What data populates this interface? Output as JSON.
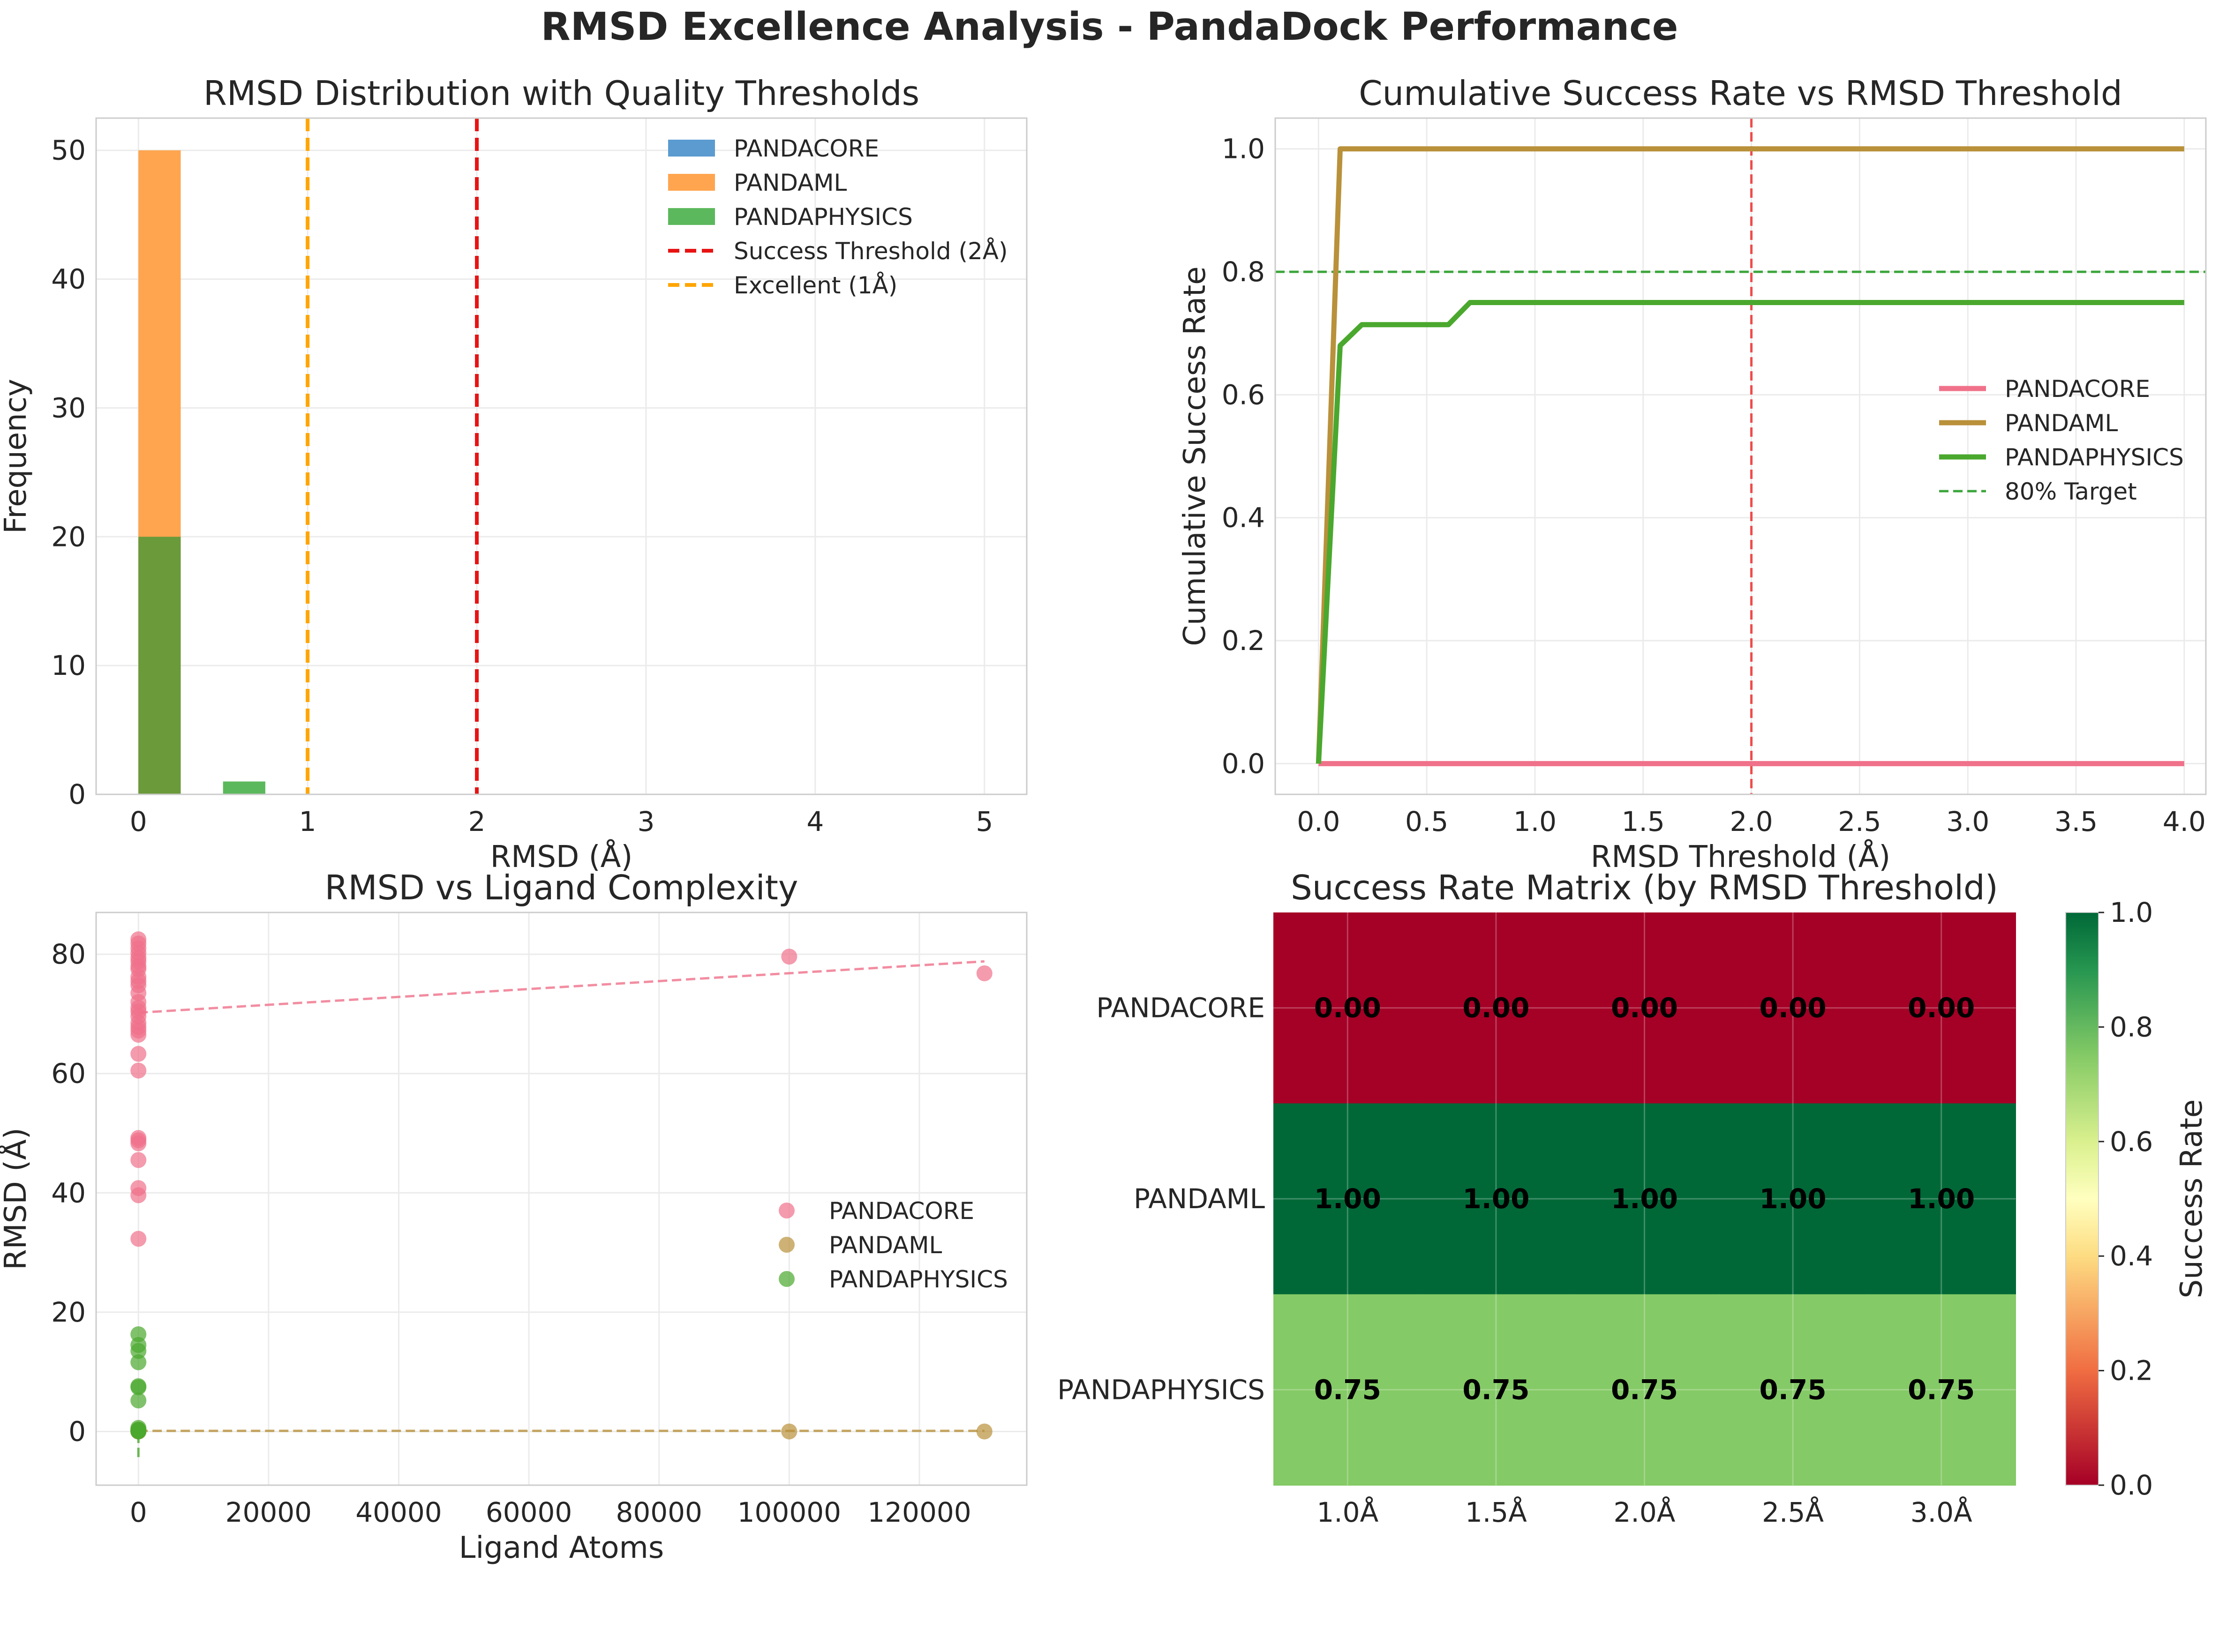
{
  "figure": {
    "title": "RMSD Excellence Analysis - PandaDock Performance"
  },
  "colors": {
    "pandacore": "#f0718a",
    "pandaml": "#b9913a",
    "pandaphysics": "#4aa82e",
    "hist_pandacore": "#5b9bd0",
    "hist_pandaml": "#ffa54f",
    "hist_pandaphysics": "#5cb85c",
    "hist_overlap": "#6b9a3a",
    "success_line": "#e81313",
    "excellent_line": "#ffa500",
    "target_line": "#3aa53a",
    "threshold_vline": "#f04b4b"
  },
  "chart_data": [
    {
      "id": "hist",
      "type": "histogram",
      "title": "RMSD Distribution with Quality Thresholds",
      "xlabel": "RMSD (Å)",
      "ylabel": "Frequency",
      "xlim": [
        -0.25,
        5.25
      ],
      "ylim": [
        0,
        52.5
      ],
      "xticks": [
        0,
        1,
        2,
        3,
        4,
        5
      ],
      "yticks": [
        0,
        10,
        20,
        30,
        40,
        50
      ],
      "bin_width": 0.25,
      "series": [
        {
          "name": "PANDACORE",
          "bins": []
        },
        {
          "name": "PANDAML",
          "bins": [
            {
              "x0": 0.0,
              "count": 50
            }
          ]
        },
        {
          "name": "PANDAPHYSICS",
          "bins": [
            {
              "x0": 0.0,
              "count": 20
            },
            {
              "x0": 0.5,
              "count": 1
            }
          ]
        }
      ],
      "vlines": [
        {
          "name": "Success Threshold (2Å)",
          "x": 2
        },
        {
          "name": "Excellent (1Å)",
          "x": 1
        }
      ],
      "legend": "top-right",
      "grid": true
    },
    {
      "id": "cumulative",
      "type": "line",
      "title": "Cumulative Success Rate vs RMSD Threshold",
      "xlabel": "RMSD Threshold (Å)",
      "ylabel": "Cumulative Success Rate",
      "xlim": [
        -0.2,
        4.1
      ],
      "ylim": [
        -0.05,
        1.05
      ],
      "xticks": [
        "0.0",
        "0.5",
        "1.0",
        "1.5",
        "2.0",
        "2.5",
        "3.0",
        "3.5",
        "4.0"
      ],
      "yticks": [
        "0.0",
        "0.2",
        "0.4",
        "0.6",
        "0.8",
        "1.0"
      ],
      "series": [
        {
          "name": "PANDACORE",
          "x": [
            0,
            4
          ],
          "y": [
            0,
            0
          ]
        },
        {
          "name": "PANDAML",
          "x": [
            0,
            0.1,
            4
          ],
          "y": [
            0,
            1.0,
            1.0
          ]
        },
        {
          "name": "PANDAPHYSICS",
          "x": [
            0,
            0.1,
            0.2,
            0.6,
            0.7,
            4
          ],
          "y": [
            0,
            0.68,
            0.714,
            0.714,
            0.75,
            0.75
          ]
        }
      ],
      "hline": {
        "name": "80% Target",
        "y": 0.8
      },
      "vline": {
        "x": 2.0
      },
      "legend": "center-right",
      "grid": true
    },
    {
      "id": "scatter",
      "type": "scatter",
      "title": "RMSD vs Ligand Complexity",
      "xlabel": "Ligand Atoms",
      "ylabel": "RMSD (Å)",
      "xlim": [
        -6500,
        136500
      ],
      "ylim": [
        -9,
        87
      ],
      "xticks": [
        "0",
        "20000",
        "40000",
        "60000",
        "80000",
        "100000",
        "120000"
      ],
      "yticks": [
        "0",
        "20",
        "40",
        "60",
        "80"
      ],
      "series": [
        {
          "name": "PANDACORE",
          "x": [
            0,
            0,
            0,
            0,
            0,
            0,
            0,
            0,
            0,
            0,
            0,
            0,
            0,
            0,
            0,
            0,
            0,
            0,
            0,
            0,
            0,
            0,
            0,
            0,
            0,
            0,
            0,
            0,
            0,
            100000,
            130000
          ],
          "y": [
            82.5,
            81.8,
            81,
            80.2,
            79.4,
            78.8,
            78,
            77.5,
            76.2,
            75.5,
            73.5,
            72,
            71,
            70.4,
            69.6,
            68.5,
            67.8,
            67.2,
            66.5,
            63.3,
            60.5,
            49.2,
            48.8,
            48.3,
            45.5,
            40.8,
            39.6,
            32.3,
            74.8,
            79.6,
            76.8
          ],
          "trend": [
            70.2,
            78.8
          ]
        },
        {
          "name": "PANDAML",
          "x": [
            0,
            0,
            0,
            0,
            0,
            0,
            100000,
            130000
          ],
          "y": [
            0,
            0.1,
            0.2,
            0.3,
            0,
            0.1,
            0,
            0
          ],
          "trend": [
            0.1,
            0.1
          ]
        },
        {
          "name": "PANDAPHYSICS",
          "x": [
            0,
            0,
            0,
            0,
            0,
            0,
            0,
            0,
            0,
            0,
            0,
            0
          ],
          "y": [
            16.3,
            14.5,
            13.5,
            11.6,
            7.6,
            7.4,
            5.2,
            0.6,
            0.3,
            0.1,
            0,
            0.2
          ],
          "trend": [
            -4.3,
            -4.3
          ]
        }
      ],
      "legend": "center-right",
      "grid": true
    },
    {
      "id": "heatmap",
      "type": "heatmap",
      "title": "Success Rate Matrix (by RMSD Threshold)",
      "rows": [
        "PANDACORE",
        "PANDAML",
        "PANDAPHYSICS"
      ],
      "columns": [
        "1.0Å",
        "1.5Å",
        "2.0Å",
        "2.5Å",
        "3.0Å"
      ],
      "values": [
        [
          0.0,
          0.0,
          0.0,
          0.0,
          0.0
        ],
        [
          1.0,
          1.0,
          1.0,
          1.0,
          1.0
        ],
        [
          0.75,
          0.75,
          0.75,
          0.75,
          0.75
        ]
      ],
      "value_labels": [
        [
          "0.00",
          "0.00",
          "0.00",
          "0.00",
          "0.00"
        ],
        [
          "1.00",
          "1.00",
          "1.00",
          "1.00",
          "1.00"
        ],
        [
          "0.75",
          "0.75",
          "0.75",
          "0.75",
          "0.75"
        ]
      ],
      "colorbar": {
        "label": "Success Rate",
        "range": [
          0,
          1
        ],
        "ticks": [
          "0.0",
          "0.2",
          "0.4",
          "0.6",
          "0.8",
          "1.0"
        ],
        "colormap": "RdYlGn"
      }
    }
  ]
}
